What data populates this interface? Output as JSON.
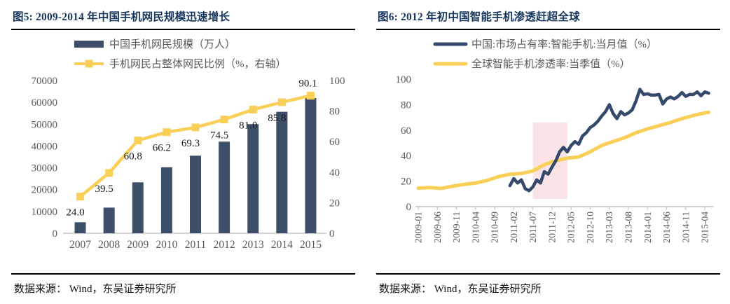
{
  "panels": [
    {
      "title": "图5:  2009-2014 年中国手机网民规模迅速增长",
      "source": "数据来源： Wind，东吴证券研究所"
    },
    {
      "title": "图6:  2012 年初中国智能手机渗透赶超全球",
      "source": "数据来源： Wind，东吴证券研究所"
    }
  ],
  "colors": {
    "navy_title": "#17375E",
    "bar": "#3E5069",
    "china_line": "#34496B",
    "gold_line": "#F9CF58",
    "highlight_band": "#F8DCE0",
    "axis_text": "#595959",
    "data_label": "#1A1A1A",
    "axis_line": "#C4C4C4",
    "rule": "#000000"
  },
  "chart_data": [
    {
      "type": "bar",
      "title": "图5: 2009-2014 年中国手机网民规模迅速增长",
      "categories": [
        "2007",
        "2008",
        "2009",
        "2010",
        "2011",
        "2012",
        "2013",
        "2014",
        "2015"
      ],
      "series": [
        {
          "name": "中国手机网民规模（万人）",
          "type": "bar",
          "axis": "left",
          "values": [
            5040,
            11760,
            23344,
            30274,
            35558,
            41997,
            50006,
            55678,
            61981
          ]
        },
        {
          "name": "手机网民占整体网民比例（%，右轴）",
          "type": "line",
          "axis": "right",
          "values": [
            24.0,
            39.5,
            60.8,
            66.2,
            69.3,
            74.5,
            81.0,
            85.8,
            90.1
          ],
          "point_labels": [
            "24.0",
            "39.5",
            "60.8",
            "66.2",
            "69.3",
            "74.5",
            "81.0",
            "85.8",
            "90.1"
          ]
        }
      ],
      "left_axis": {
        "min": 0,
        "max": 70000,
        "tick_labels": [
          "0",
          "10000",
          "20000",
          "30000",
          "40000",
          "50000",
          "60000",
          "70000"
        ]
      },
      "right_axis": {
        "min": 0,
        "max": 100,
        "tick_labels": [
          "0",
          "20",
          "40",
          "60",
          "80",
          "100"
        ]
      },
      "legend_position": "top",
      "grid": false
    },
    {
      "type": "line",
      "title": "图6: 2012 年初中国智能手机渗透赶超全球",
      "x_axis": {
        "unit": "month",
        "start": "2009-01",
        "end": "2015-06",
        "tick_labels": [
          "2009-01",
          "2009-06",
          "2009-11",
          "2010-04",
          "2010-09",
          "2011-02",
          "2011-07",
          "2011-12",
          "2012-05",
          "2012-10",
          "2013-03",
          "2013-08",
          "2014-01",
          "2014-06",
          "2014-11",
          "2015-04"
        ]
      },
      "y_axis": {
        "min": 0,
        "max": 100,
        "tick_labels": [
          "0",
          "20",
          "40",
          "60",
          "80",
          "100"
        ]
      },
      "series": [
        {
          "name": "中国:市场占有率:智能手机:当月值（%）",
          "start_month": "2011-01",
          "monthly_values": [
            16.5,
            22,
            18.5,
            21,
            14,
            12.5,
            15.5,
            21,
            18.5,
            27.5,
            25.5,
            31,
            36,
            43,
            46.5,
            43,
            48,
            51,
            49,
            55.5,
            58,
            62,
            64,
            67,
            71,
            74.5,
            80,
            73,
            69,
            74.5,
            72,
            73.5,
            76,
            83,
            92,
            88,
            88.5,
            87.5,
            87.5,
            88,
            80.5,
            84.5,
            86,
            84.5,
            86.5,
            89.5,
            86.5,
            88,
            88,
            90,
            87,
            90,
            89
          ]
        },
        {
          "name": "全球智能手机渗透率:当季值（%）",
          "points_month_value": [
            [
              "2009-01",
              14.5
            ],
            [
              "2009-04",
              15
            ],
            [
              "2009-07",
              14.3
            ],
            [
              "2009-10",
              16
            ],
            [
              "2010-01",
              17.5
            ],
            [
              "2010-04",
              18.5
            ],
            [
              "2010-07",
              20.5
            ],
            [
              "2010-10",
              23.5
            ],
            [
              "2011-01",
              25.5
            ],
            [
              "2011-04",
              26
            ],
            [
              "2011-07",
              28
            ],
            [
              "2011-10",
              33
            ],
            [
              "2012-01",
              36
            ],
            [
              "2012-04",
              38
            ],
            [
              "2012-07",
              39
            ],
            [
              "2012-10",
              43
            ],
            [
              "2013-01",
              48
            ],
            [
              "2013-04",
              51
            ],
            [
              "2013-07",
              54
            ],
            [
              "2013-10",
              58
            ],
            [
              "2014-01",
              61
            ],
            [
              "2014-04",
              63.5
            ],
            [
              "2014-07",
              66
            ],
            [
              "2014-10",
              69
            ],
            [
              "2015-01",
              71.5
            ],
            [
              "2015-04",
              73.5
            ],
            [
              "2015-05",
              74
            ]
          ]
        }
      ],
      "highlight_band": {
        "start_month": "2011-07",
        "end_month": "2012-04",
        "value_from": 6,
        "value_to": 66
      },
      "legend_position": "top",
      "grid": false
    }
  ]
}
